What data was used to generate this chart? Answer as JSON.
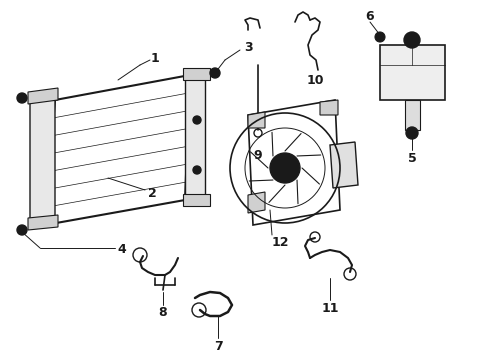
{
  "background_color": "#ffffff",
  "line_color": "#1a1a1a",
  "line_width": 1.0,
  "fig_width": 4.9,
  "fig_height": 3.6,
  "dpi": 100,
  "font_size": 8,
  "font_size_label": 9
}
